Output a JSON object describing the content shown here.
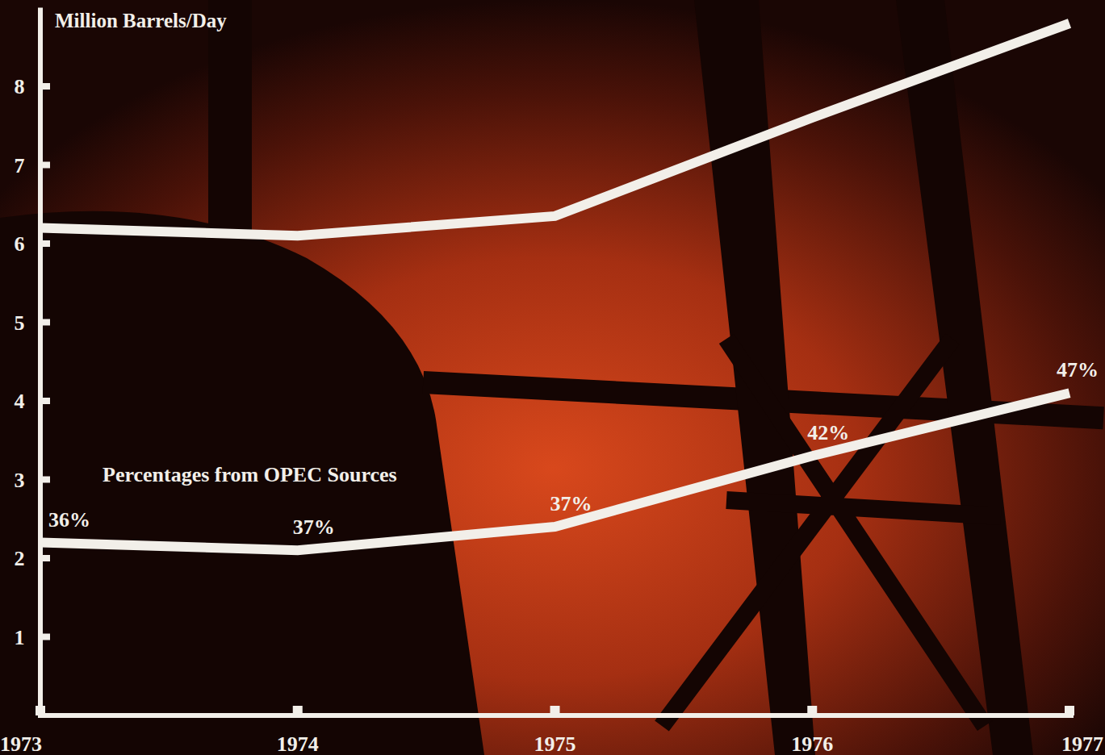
{
  "chart_data": {
    "type": "line",
    "y_label": "Million Barrels/Day",
    "annotation": "Percentages from OPEC Sources",
    "x": [
      1973,
      1974,
      1975,
      1976,
      1977
    ],
    "series": [
      {
        "values": [
          6.2,
          6.1,
          6.35,
          7.6,
          8.8
        ],
        "color": "#f2efe9"
      },
      {
        "values": [
          2.2,
          2.1,
          2.4,
          3.3,
          4.1
        ],
        "color": "#f2efe9",
        "percentages": [
          36,
          37,
          37,
          42,
          47
        ],
        "percentage_labels": [
          "36%",
          "37%",
          "37%",
          "42%",
          "47%"
        ]
      }
    ],
    "xlim": [
      1973,
      1977
    ],
    "xticks": [
      1973,
      1974,
      1975,
      1976,
      1977
    ],
    "ylim": [
      0,
      9
    ],
    "yticks": [
      1,
      2,
      3,
      4,
      5,
      6,
      7,
      8
    ],
    "grid": false
  }
}
